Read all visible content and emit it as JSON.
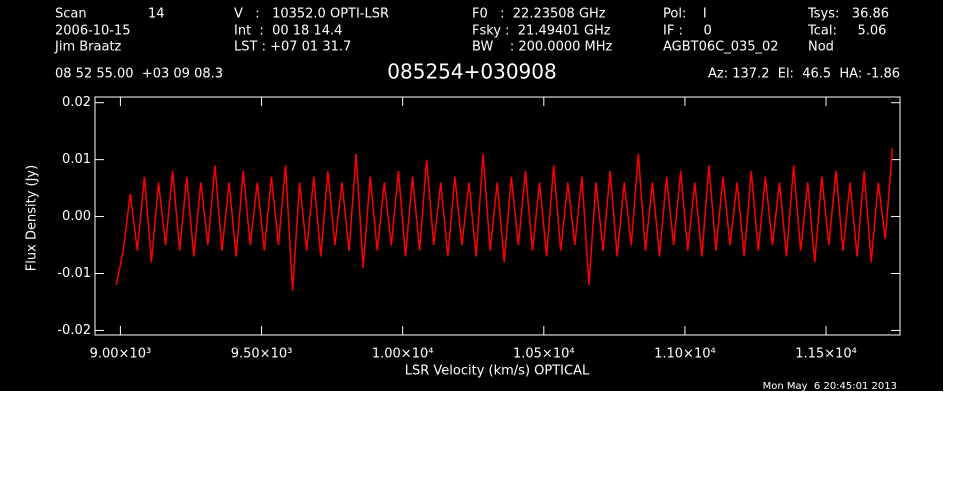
{
  "chart_data": {
    "type": "line",
    "title": "085254+030908",
    "info": [
      "Scan",
      "14",
      "V   :   10352.0 OPTI-LSR",
      "F0   :  22.23508 GHz",
      "Pol:    I",
      "Tsys:   36.86",
      "2006-10-15",
      "Int  :  00 18 14.4",
      "Fsky :  21.49401 GHz",
      "IF :     0",
      "Tcal:     5.06",
      "Jim Braatz",
      "LST : +07 01 31.7",
      "BW    : 200.0000 MHz",
      "AGBT06C_035_02",
      "Nod",
      "08 52 55.00  +03 09 08.3",
      "Az: 137.2  El:  46.5  HA: -1.86"
    ],
    "timestamp": "Mon May  6 20:45:01 2013",
    "xlabel": "LSR Velocity (km/s) OPTICAL",
    "ylabel": "Flux Density (Jy)",
    "xlim": [
      8910,
      11762
    ],
    "ylim": [
      -0.0208,
      0.021
    ],
    "xticks": [
      {
        "value": 9000,
        "label": "9.00×10³"
      },
      {
        "value": 9500,
        "label": "9.50×10³"
      },
      {
        "value": 10000,
        "label": "1.00×10⁴"
      },
      {
        "value": 10500,
        "label": "1.05×10⁴"
      },
      {
        "value": 11000,
        "label": "1.10×10⁴"
      },
      {
        "value": 11500,
        "label": "1.15×10⁴"
      }
    ],
    "yticks": [
      -0.02,
      -0.01,
      {
        "value": 0,
        "label": "0.00"
      },
      0.01,
      0.02
    ],
    "x": [
      8985,
      9010,
      9035,
      9060,
      9085,
      9110,
      9135,
      9160,
      9185,
      9210,
      9235,
      9260,
      9285,
      9310,
      9335,
      9360,
      9385,
      9410,
      9435,
      9460,
      9485,
      9510,
      9535,
      9560,
      9585,
      9610,
      9635,
      9660,
      9685,
      9710,
      9735,
      9760,
      9785,
      9810,
      9835,
      9860,
      9885,
      9910,
      9935,
      9960,
      9985,
      10010,
      10035,
      10060,
      10085,
      10110,
      10135,
      10160,
      10185,
      10210,
      10235,
      10260,
      10285,
      10310,
      10335,
      10360,
      10385,
      10410,
      10435,
      10460,
      10485,
      10510,
      10535,
      10560,
      10585,
      10610,
      10635,
      10660,
      10685,
      10710,
      10735,
      10760,
      10785,
      10810,
      10835,
      10860,
      10885,
      10910,
      10935,
      10960,
      10985,
      11010,
      11035,
      11060,
      11085,
      11110,
      11135,
      11160,
      11185,
      11210,
      11235,
      11260,
      11285,
      11310,
      11335,
      11360,
      11385,
      11410,
      11435,
      11460,
      11485,
      11510,
      11535,
      11560,
      11585,
      11610,
      11635,
      11660,
      11685,
      11710,
      11735
    ],
    "series": [
      {
        "color": "#ff0000",
        "values": [
          -0.012,
          -0.006,
          0.004,
          -0.006,
          0.007,
          -0.008,
          0.006,
          -0.005,
          0.008,
          -0.006,
          0.007,
          -0.007,
          0.006,
          -0.005,
          0.009,
          -0.006,
          0.006,
          -0.007,
          0.008,
          -0.005,
          0.006,
          -0.006,
          0.007,
          -0.005,
          0.009,
          -0.013,
          0.006,
          -0.006,
          0.007,
          -0.007,
          0.008,
          -0.005,
          0.006,
          -0.006,
          0.011,
          -0.009,
          0.007,
          -0.006,
          0.006,
          -0.005,
          0.008,
          -0.007,
          0.007,
          -0.006,
          0.01,
          -0.005,
          0.006,
          -0.007,
          0.007,
          -0.005,
          0.006,
          -0.007,
          0.011,
          -0.006,
          0.006,
          -0.008,
          0.007,
          -0.005,
          0.008,
          -0.006,
          0.006,
          -0.007,
          0.009,
          -0.006,
          0.006,
          -0.005,
          0.007,
          -0.012,
          0.006,
          -0.006,
          0.008,
          -0.007,
          0.006,
          -0.005,
          0.011,
          -0.006,
          0.006,
          -0.007,
          0.007,
          -0.005,
          0.008,
          -0.006,
          0.006,
          -0.007,
          0.009,
          -0.006,
          0.007,
          -0.005,
          0.006,
          -0.007,
          0.008,
          -0.006,
          0.007,
          -0.005,
          0.006,
          -0.007,
          0.009,
          -0.006,
          0.006,
          -0.008,
          0.007,
          -0.005,
          0.008,
          -0.006,
          0.006,
          -0.007,
          0.008,
          -0.008,
          0.006,
          -0.004,
          0.012
        ]
      }
    ]
  }
}
